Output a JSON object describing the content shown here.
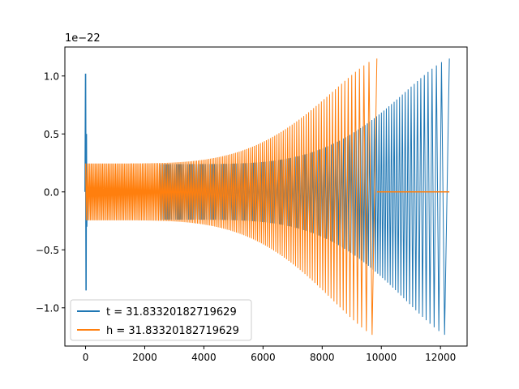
{
  "chart_data": {
    "type": "line",
    "title": "",
    "xlabel": "",
    "ylabel": "",
    "y_offset_label": "1e−22",
    "xlim": [
      -700,
      12900
    ],
    "ylim": [
      -1.33,
      1.25
    ],
    "x_ticks": [
      0,
      2000,
      4000,
      6000,
      8000,
      10000,
      12000
    ],
    "x_tick_labels": [
      "0",
      "2000",
      "4000",
      "6000",
      "8000",
      "10000",
      "12000"
    ],
    "y_ticks": [
      -1.0,
      -0.5,
      0.0,
      0.5,
      1.0
    ],
    "y_tick_labels": [
      "−1.0",
      "−0.5",
      "0.0",
      "0.5",
      "1.0"
    ],
    "grid": false,
    "legend_position": "lower-left",
    "series": [
      {
        "name": "t = 31.83320182719629",
        "color": "#1f77b4",
        "spike": {
          "x": 0,
          "max": 1.02,
          "min": -0.85
        },
        "flat": {
          "x_start": 0,
          "x_end": 2500,
          "value": 0.0
        },
        "chirp": {
          "x_start": 2500,
          "x_end": 12300,
          "amp_start": 0.24,
          "amp_end": 1.15,
          "min_end": -1.25,
          "cycles": 150
        }
      },
      {
        "name": "h = 31.83320182719629",
        "color": "#ff7f0e",
        "chirp": {
          "x_start": 0,
          "x_end": 9850,
          "amp_start": 0.245,
          "amp_end": 1.15,
          "min_end": -1.25,
          "cycles": 150
        },
        "flat": {
          "x_start": 9850,
          "x_end": 12300,
          "value": 0.0
        }
      }
    ]
  }
}
